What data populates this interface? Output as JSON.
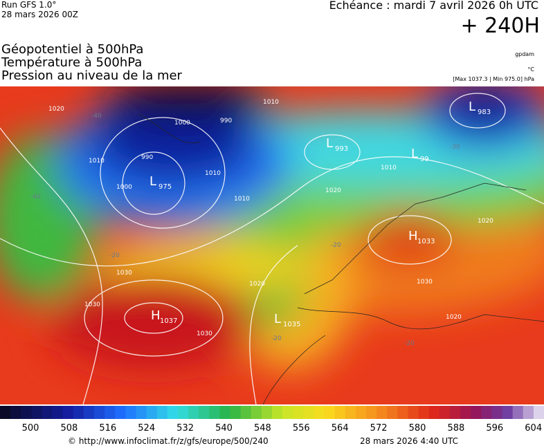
{
  "header": {
    "run": "Run GFS 1.0°",
    "run_date": "28 mars 2026 00Z",
    "valid": "Echéance : mardi 7 avril 2026 0h UTC",
    "lead": "+ 240H"
  },
  "fields": [
    "Géopotentiel à 500hPa",
    "Température à 500hPa",
    "Pression au niveau de la mer"
  ],
  "units": [
    "gpdam",
    "°C",
    "[Max 1037.3 | Min 975.0] hPa"
  ],
  "centers": [
    {
      "letter": "L",
      "value": "975"
    },
    {
      "letter": "L",
      "value": "993"
    },
    {
      "letter": "L",
      "value": "99"
    },
    {
      "letter": "L",
      "value": "983"
    },
    {
      "letter": "H",
      "value": "1037"
    },
    {
      "letter": "H",
      "value": "1033"
    },
    {
      "letter": "L",
      "value": "1035"
    }
  ],
  "contour_labels": [
    "1010",
    "1000",
    "990",
    "990",
    "1010",
    "1000",
    "1010",
    "1010",
    "1020",
    "1010",
    "1020",
    "1030",
    "1030",
    "1030",
    "1020",
    "1020",
    "1030",
    "1020",
    "-20",
    "-20",
    "-20",
    "-30",
    "-40",
    "-40",
    "-20"
  ],
  "colorbar_labels": [
    "500",
    "508",
    "516",
    "524",
    "532",
    "540",
    "548",
    "556",
    "564",
    "572",
    "580",
    "588",
    "596",
    "604"
  ],
  "footer": {
    "source": "© http://www.infoclimat.fr/z/gfs/europe/500/240",
    "generated": "28 mars 2026  4:40 UTC"
  }
}
